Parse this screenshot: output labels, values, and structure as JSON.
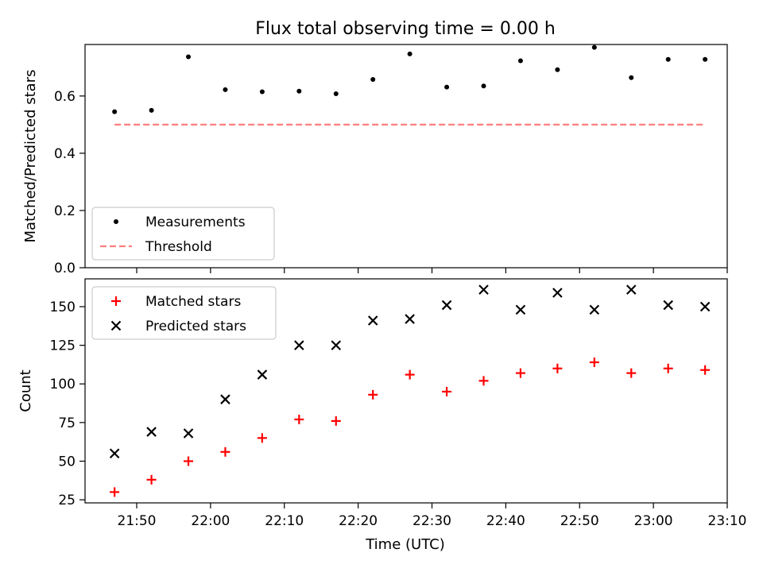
{
  "figure": {
    "title": "Flux total observing time = 0.00 h",
    "xlabel": "Time (UTC)"
  },
  "chart_data": [
    {
      "type": "scatter",
      "ylabel": "Matched/Predicted stars",
      "ylim": [
        0,
        0.78
      ],
      "yticks": [
        0.0,
        0.2,
        0.4,
        0.6
      ],
      "ytick_labels": [
        "0.0",
        "0.2",
        "0.4",
        "0.6"
      ],
      "xlim": [
        "21:43",
        "23:10"
      ],
      "legend_position": "lower-left",
      "series": [
        {
          "name": "Measurements",
          "marker": "dot",
          "color": "#000000",
          "points": [
            [
              "21:47",
              0.545
            ],
            [
              "21:52",
              0.55
            ],
            [
              "21:57",
              0.737
            ],
            [
              "22:02",
              0.622
            ],
            [
              "22:07",
              0.615
            ],
            [
              "22:12",
              0.617
            ],
            [
              "22:17",
              0.608
            ],
            [
              "22:22",
              0.658
            ],
            [
              "22:27",
              0.747
            ],
            [
              "22:32",
              0.631
            ],
            [
              "22:37",
              0.635
            ],
            [
              "22:42",
              0.723
            ],
            [
              "22:47",
              0.692
            ],
            [
              "22:52",
              0.77
            ],
            [
              "22:57",
              0.664
            ],
            [
              "23:02",
              0.728
            ],
            [
              "23:07",
              0.728
            ]
          ]
        },
        {
          "name": "Threshold",
          "marker": "dashed-line",
          "color": "#ff7f7f",
          "points": [
            [
              "21:47",
              0.5
            ],
            [
              "23:07",
              0.5
            ]
          ]
        }
      ]
    },
    {
      "type": "scatter",
      "ylabel": "Count",
      "ylim": [
        23,
        168
      ],
      "yticks": [
        25,
        50,
        75,
        100,
        125,
        150
      ],
      "ytick_labels": [
        "25",
        "50",
        "75",
        "100",
        "125",
        "150"
      ],
      "xlim": [
        "21:43",
        "23:10"
      ],
      "xticks": [
        "21:50",
        "22:00",
        "22:10",
        "22:20",
        "22:30",
        "22:40",
        "22:50",
        "23:00",
        "23:10"
      ],
      "legend_position": "upper-left",
      "series": [
        {
          "name": "Matched stars",
          "marker": "plus",
          "color": "#ff0000",
          "points": [
            [
              "21:47",
              30
            ],
            [
              "21:52",
              38
            ],
            [
              "21:57",
              50
            ],
            [
              "22:02",
              56
            ],
            [
              "22:07",
              65
            ],
            [
              "22:12",
              77
            ],
            [
              "22:17",
              76
            ],
            [
              "22:22",
              93
            ],
            [
              "22:27",
              106
            ],
            [
              "22:32",
              95
            ],
            [
              "22:37",
              102
            ],
            [
              "22:42",
              107
            ],
            [
              "22:47",
              110
            ],
            [
              "22:52",
              114
            ],
            [
              "22:57",
              107
            ],
            [
              "23:02",
              110
            ],
            [
              "23:07",
              109
            ]
          ]
        },
        {
          "name": "Predicted stars",
          "marker": "x",
          "color": "#000000",
          "points": [
            [
              "21:47",
              55
            ],
            [
              "21:52",
              69
            ],
            [
              "21:57",
              68
            ],
            [
              "22:02",
              90
            ],
            [
              "22:07",
              106
            ],
            [
              "22:12",
              125
            ],
            [
              "22:17",
              125
            ],
            [
              "22:22",
              141
            ],
            [
              "22:27",
              142
            ],
            [
              "22:32",
              151
            ],
            [
              "22:37",
              161
            ],
            [
              "22:42",
              148
            ],
            [
              "22:47",
              159
            ],
            [
              "22:52",
              148
            ],
            [
              "22:57",
              161
            ],
            [
              "23:02",
              151
            ],
            [
              "23:07",
              150
            ]
          ]
        }
      ]
    }
  ]
}
